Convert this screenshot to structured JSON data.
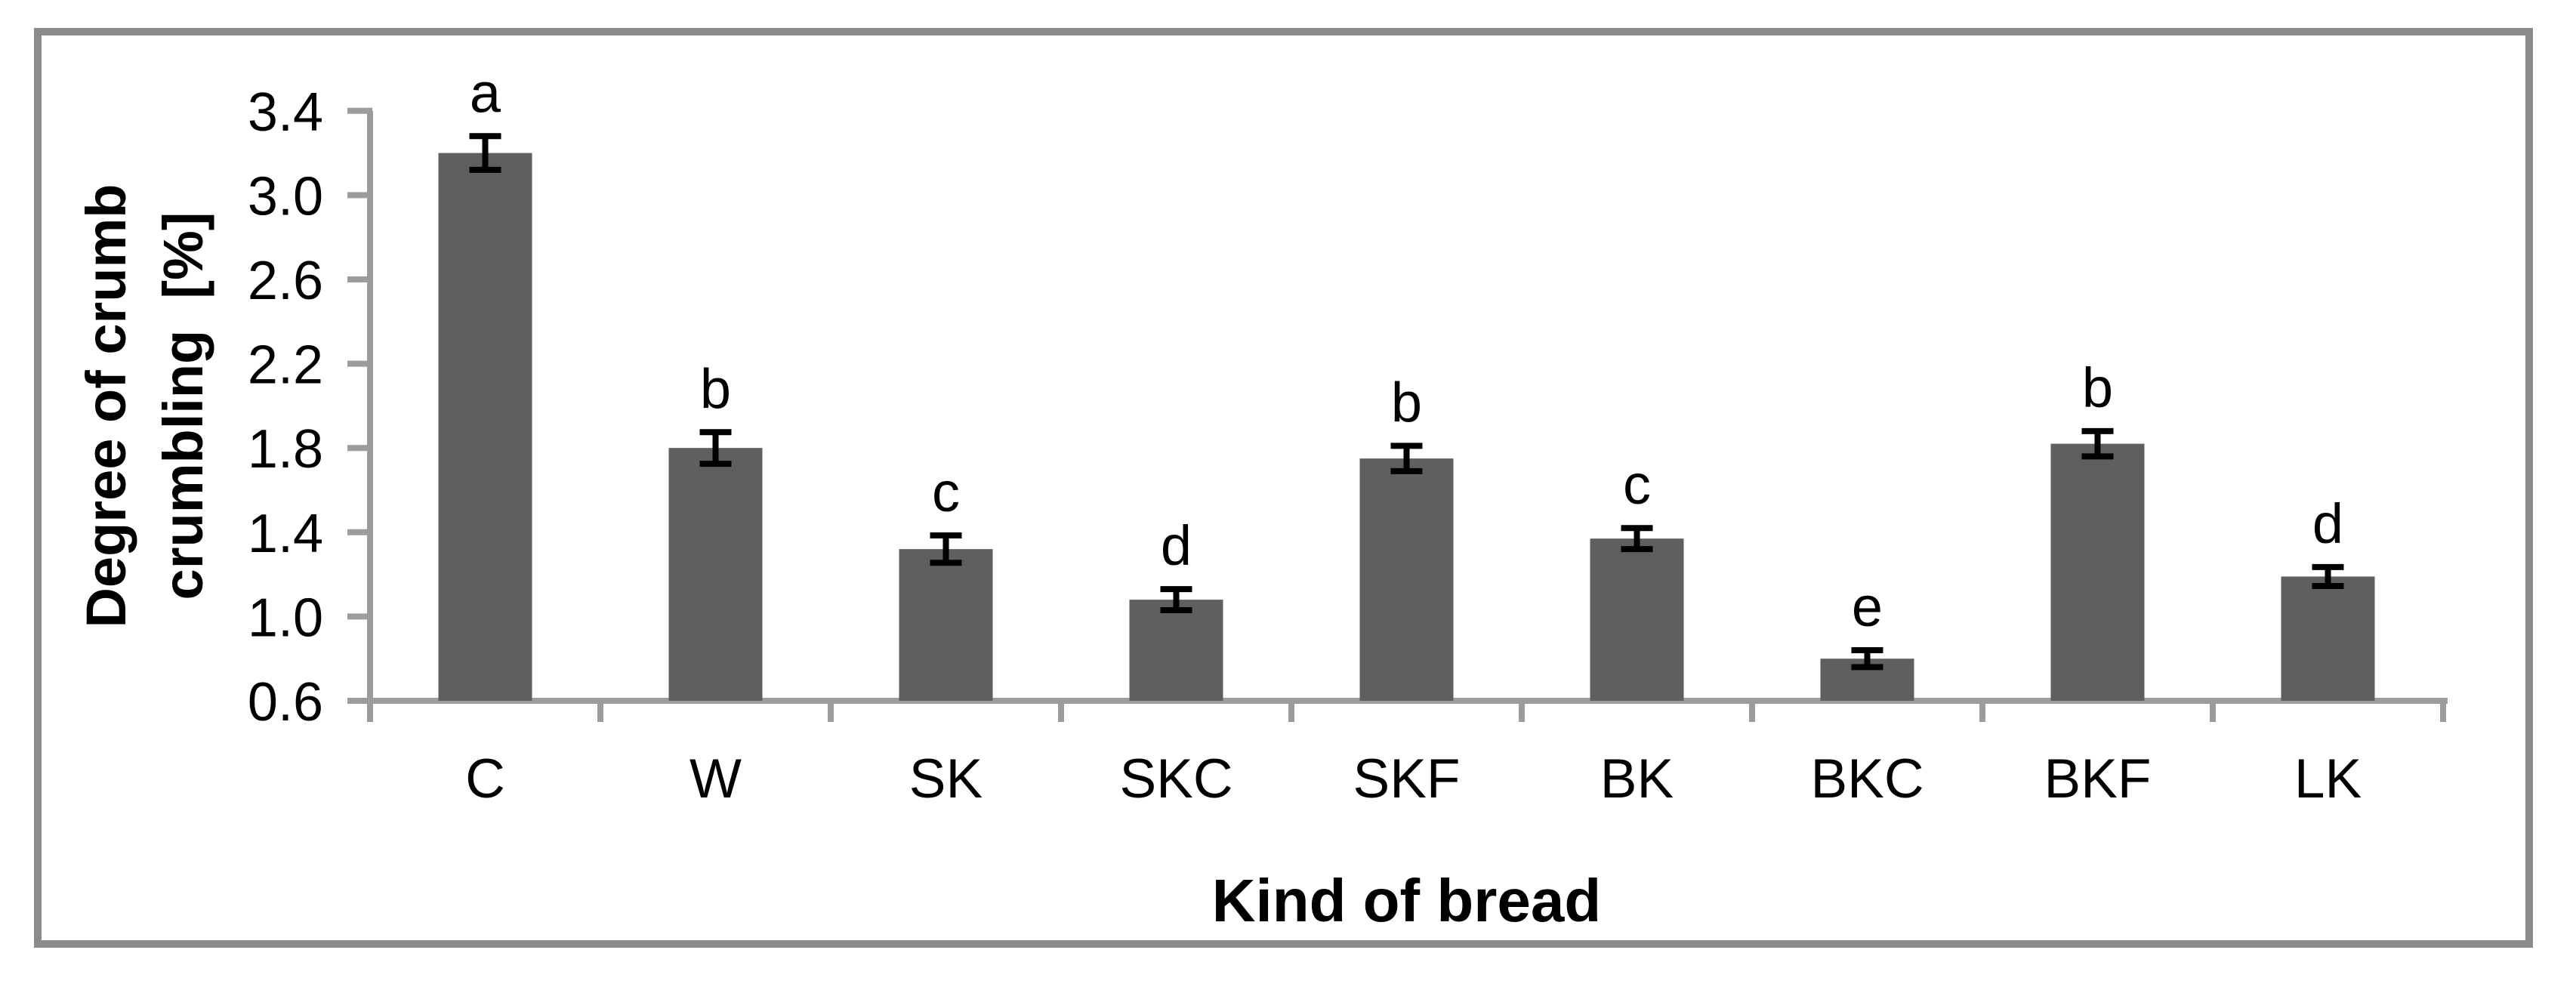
{
  "chart_data": {
    "type": "bar",
    "title": "",
    "xlabel": "Kind of bread",
    "ylabel": "Degree of crumb crumbling [%]",
    "ylabel_lines": [
      "Degree of crumb",
      "crumbling  [%]"
    ],
    "categories": [
      "C",
      "W",
      "SK",
      "SKC",
      "SKF",
      "BK",
      "BKC",
      "BKF",
      "LK"
    ],
    "values": [
      3.2,
      1.8,
      1.32,
      1.08,
      1.75,
      1.37,
      0.8,
      1.82,
      1.19
    ],
    "errors": [
      0.08,
      0.075,
      0.065,
      0.05,
      0.06,
      0.05,
      0.04,
      0.06,
      0.045
    ],
    "sig_letters": [
      "a",
      "b",
      "c",
      "d",
      "b",
      "c",
      "e",
      "b",
      "d"
    ],
    "ylim": [
      0.6,
      3.4
    ],
    "ytick_step": 0.4,
    "ytick_labels": [
      "3.4",
      "3.0",
      "2.6",
      "2.2",
      "1.8",
      "1.4",
      "1.0",
      "0.6"
    ],
    "grid": false,
    "legend": "none",
    "colors": {
      "bar": "#5F5F5F",
      "axis": "#9C9C9C",
      "frame": "#8B8B8B",
      "error": "#000000",
      "text": "#000000"
    }
  }
}
